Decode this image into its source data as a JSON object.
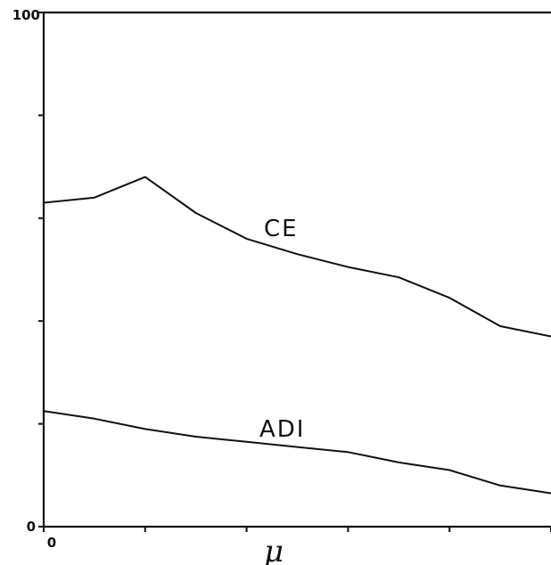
{
  "chart_data": {
    "type": "line",
    "title": "",
    "xlabel": "μ",
    "ylabel": "",
    "ylim": [
      0,
      100
    ],
    "xlim": [
      0,
      5
    ],
    "y_tick_labels": [
      "0",
      "100"
    ],
    "y_ticks": [
      0,
      20,
      40,
      60,
      80,
      100
    ],
    "x_tick_labels": [
      "0"
    ],
    "x_ticks": [
      0,
      1,
      2,
      3,
      4,
      5
    ],
    "grid": false,
    "series": [
      {
        "name": "CE",
        "x": [
          0,
          0.5,
          1.0,
          1.5,
          2.0,
          2.5,
          3.0,
          3.5,
          4.0,
          4.5,
          5.0
        ],
        "values": [
          63,
          64,
          68,
          61,
          56,
          53,
          50.5,
          48.5,
          44.5,
          39,
          37
        ]
      },
      {
        "name": "ADI",
        "x": [
          0,
          0.5,
          1.0,
          1.5,
          2.0,
          2.5,
          3.0,
          3.5,
          4.0,
          4.5,
          5.0
        ],
        "values": [
          22.5,
          21,
          19,
          17.5,
          16.5,
          15.5,
          14.5,
          12.5,
          11,
          8,
          6.5
        ]
      }
    ]
  }
}
